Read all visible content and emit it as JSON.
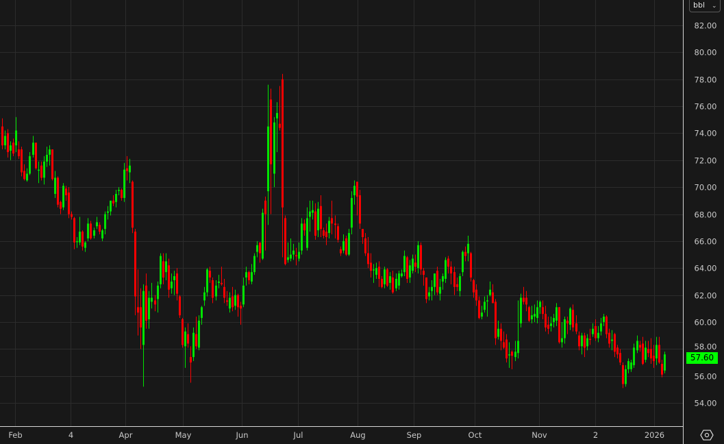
{
  "unit_selector": {
    "value": "bbl",
    "icon": "chevron-down-icon"
  },
  "last_price_label": "57.60",
  "settings_icon": "settings-hexagon-icon",
  "colors": {
    "background": "#181818",
    "grid": "#2c2c2c",
    "up": "#00e400",
    "down": "#ff0000",
    "last_price_bg": "#00ff00",
    "axis_line": "#d8d8d8"
  },
  "chart_data": {
    "type": "candlestick",
    "title": "",
    "xlabel": "",
    "ylabel": "",
    "ylim": [
      52.6,
      83.9
    ],
    "grid": true,
    "y_ticks": [
      "54.00",
      "56.00",
      "58.00",
      "60.00",
      "62.00",
      "64.00",
      "66.00",
      "68.00",
      "70.00",
      "72.00",
      "74.00",
      "76.00",
      "78.00",
      "80.00",
      "82.00"
    ],
    "x_tick_labels": [
      "Feb",
      "4",
      "Apr",
      "May",
      "Jun",
      "Jul",
      "Aug",
      "Sep",
      "Oct",
      "Nov",
      "2",
      "2026"
    ],
    "last_close": 57.6,
    "ohlc_fields": [
      "open",
      "high",
      "low",
      "close"
    ],
    "candles": [
      [
        74.5,
        75.1,
        72.8,
        73.1
      ],
      [
        73.1,
        74.2,
        72.8,
        73.8
      ],
      [
        74.0,
        74.3,
        72.2,
        72.6
      ],
      [
        72.7,
        73.4,
        72.0,
        73.1
      ],
      [
        73.3,
        73.6,
        72.3,
        72.5
      ],
      [
        73.1,
        75.2,
        72.6,
        74.2
      ],
      [
        72.8,
        73.4,
        72.1,
        72.3
      ],
      [
        72.8,
        73.0,
        70.8,
        71.1
      ],
      [
        71.2,
        71.7,
        70.5,
        70.6
      ],
      [
        70.5,
        71.4,
        70.4,
        71.0
      ],
      [
        71.0,
        72.6,
        70.9,
        72.3
      ],
      [
        72.4,
        73.8,
        72.2,
        73.3
      ],
      [
        73.3,
        73.3,
        71.3,
        71.4
      ],
      [
        71.3,
        71.9,
        70.3,
        71.3
      ],
      [
        71.6,
        71.9,
        70.5,
        70.7
      ],
      [
        70.7,
        72.3,
        70.2,
        71.9
      ],
      [
        71.9,
        73.0,
        71.5,
        72.4
      ],
      [
        72.4,
        73.1,
        71.6,
        72.8
      ],
      [
        72.8,
        72.8,
        70.5,
        70.6
      ],
      [
        69.5,
        71.2,
        69.2,
        70.7
      ],
      [
        70.7,
        70.8,
        68.5,
        68.7
      ],
      [
        68.9,
        69.0,
        68.0,
        68.4
      ],
      [
        68.5,
        70.3,
        68.3,
        70.1
      ],
      [
        69.9,
        70.1,
        69.0,
        69.4
      ],
      [
        69.6,
        70.0,
        67.7,
        68.0
      ],
      [
        68.0,
        68.2,
        67.6,
        67.8
      ],
      [
        67.7,
        67.8,
        65.4,
        65.9
      ],
      [
        65.95,
        66.3,
        65.5,
        66.0
      ],
      [
        65.9,
        67.8,
        65.7,
        66.7
      ],
      [
        66.7,
        66.8,
        65.3,
        65.6
      ],
      [
        65.5,
        66.0,
        65.2,
        65.9
      ],
      [
        66.2,
        67.7,
        66.0,
        67.3
      ],
      [
        67.3,
        67.5,
        66.1,
        66.2
      ],
      [
        66.4,
        67.0,
        66.2,
        66.8
      ],
      [
        67.1,
        67.8,
        66.9,
        67.4
      ],
      [
        67.2,
        67.4,
        66.5,
        66.7
      ],
      [
        66.2,
        66.9,
        66.0,
        66.8
      ],
      [
        66.9,
        68.2,
        66.5,
        68.0
      ],
      [
        68.1,
        68.6,
        67.6,
        68.2
      ],
      [
        68.2,
        69.0,
        67.9,
        69.0
      ],
      [
        69.0,
        69.4,
        68.6,
        68.8
      ],
      [
        68.9,
        69.8,
        68.5,
        69.5
      ],
      [
        69.75,
        70.0,
        69.4,
        69.8
      ],
      [
        69.8,
        69.9,
        69.0,
        69.2
      ],
      [
        69.2,
        71.8,
        68.9,
        71.3
      ],
      [
        71.4,
        72.3,
        70.5,
        71.2
      ],
      [
        71.1,
        72.1,
        70.3,
        71.6
      ],
      [
        70.4,
        70.5,
        66.6,
        67.0
      ],
      [
        66.7,
        66.9,
        60.5,
        61.9
      ],
      [
        61.1,
        63.9,
        59.0,
        60.7
      ],
      [
        61.1,
        62.5,
        58.0,
        59.6
      ],
      [
        58.3,
        62.8,
        55.2,
        62.3
      ],
      [
        62.7,
        63.6,
        59.5,
        60.1
      ],
      [
        60.2,
        62.3,
        59.5,
        61.8
      ],
      [
        61.5,
        62.9,
        61.0,
        61.8
      ],
      [
        61.6,
        62.0,
        60.8,
        61.3
      ],
      [
        61.7,
        63.0,
        60.7,
        62.7
      ],
      [
        62.8,
        65.1,
        62.5,
        64.9
      ],
      [
        64.5,
        65.1,
        62.8,
        63.3
      ],
      [
        63.7,
        65.1,
        63.1,
        64.5
      ],
      [
        64.2,
        64.7,
        61.8,
        62.4
      ],
      [
        62.5,
        63.6,
        62.1,
        63.0
      ],
      [
        63.1,
        63.8,
        62.0,
        63.4
      ],
      [
        63.6,
        64.0,
        61.6,
        62.1
      ],
      [
        61.9,
        62.0,
        60.3,
        60.5
      ],
      [
        60.2,
        60.3,
        58.1,
        58.3
      ],
      [
        58.2,
        59.6,
        56.6,
        59.3
      ],
      [
        59.1,
        59.9,
        58.1,
        58.4
      ],
      [
        57.4,
        58.2,
        55.5,
        57.0
      ],
      [
        57.4,
        59.6,
        57.1,
        59.2
      ],
      [
        59.1,
        60.4,
        58.0,
        58.2
      ],
      [
        58.1,
        60.5,
        57.9,
        60.1
      ],
      [
        60.3,
        61.2,
        59.8,
        61.1
      ],
      [
        61.6,
        62.6,
        61.2,
        62.2
      ],
      [
        62.2,
        64.0,
        61.9,
        63.9
      ],
      [
        63.8,
        64.1,
        62.9,
        63.3
      ],
      [
        63.1,
        63.3,
        61.4,
        61.8
      ],
      [
        61.9,
        63.1,
        61.6,
        62.7
      ],
      [
        62.9,
        63.5,
        62.5,
        63.0
      ],
      [
        62.9,
        64.1,
        62.7,
        62.8
      ],
      [
        62.6,
        63.2,
        61.4,
        61.8
      ],
      [
        61.6,
        62.3,
        61.2,
        61.5
      ],
      [
        61.0,
        62.2,
        60.7,
        61.8
      ],
      [
        61.9,
        62.6,
        60.8,
        61.1
      ],
      [
        61.2,
        62.4,
        60.9,
        62.0
      ],
      [
        62.0,
        62.1,
        60.4,
        61.1
      ],
      [
        61.2,
        61.5,
        59.8,
        61.0
      ],
      [
        61.3,
        63.3,
        61.1,
        62.7
      ],
      [
        63.3,
        64.1,
        62.7,
        63.7
      ],
      [
        63.7,
        63.8,
        62.8,
        63.1
      ],
      [
        63.0,
        64.3,
        62.8,
        63.7
      ],
      [
        63.7,
        65.1,
        63.5,
        64.9
      ],
      [
        65.2,
        66.0,
        64.8,
        65.7
      ],
      [
        65.9,
        65.9,
        64.4,
        65.1
      ],
      [
        64.7,
        68.4,
        64.6,
        68.1
      ],
      [
        69.0,
        69.3,
        65.3,
        68.0
      ],
      [
        69.7,
        77.6,
        67.2,
        74.5
      ],
      [
        76.5,
        77.3,
        68.0,
        71.7
      ],
      [
        71.0,
        75.2,
        70.0,
        74.8
      ],
      [
        75.1,
        76.3,
        72.6,
        75.5
      ],
      [
        74.7,
        77.5,
        74.2,
        74.4
      ],
      [
        78.0,
        78.4,
        64.8,
        68.5
      ],
      [
        67.7,
        67.9,
        64.2,
        64.3
      ],
      [
        64.6,
        65.9,
        64.4,
        64.8
      ],
      [
        64.7,
        66.2,
        64.5,
        65.0
      ],
      [
        65.0,
        65.8,
        64.6,
        65.3
      ],
      [
        64.95,
        65.5,
        64.2,
        64.9
      ],
      [
        64.7,
        65.9,
        64.5,
        65.2
      ],
      [
        65.3,
        67.7,
        65.0,
        67.3
      ],
      [
        67.3,
        67.6,
        66.4,
        66.8
      ],
      [
        65.5,
        68.5,
        65.3,
        67.7
      ],
      [
        67.8,
        69.0,
        66.7,
        68.2
      ],
      [
        68.1,
        69.0,
        67.6,
        68.3
      ],
      [
        68.2,
        68.8,
        66.1,
        66.4
      ],
      [
        66.8,
        68.9,
        66.3,
        68.4
      ],
      [
        68.6,
        69.4,
        66.3,
        66.9
      ],
      [
        66.8,
        67.0,
        66.2,
        66.4
      ],
      [
        66.7,
        67.3,
        65.7,
        66.3
      ],
      [
        66.6,
        67.8,
        66.2,
        67.5
      ],
      [
        67.7,
        69.0,
        66.5,
        67.3
      ],
      [
        67.3,
        67.9,
        66.2,
        67.2
      ],
      [
        67.1,
        67.3,
        65.9,
        66.1
      ],
      [
        65.4,
        65.6,
        64.9,
        65.1
      ],
      [
        65.3,
        66.5,
        65.1,
        66.0
      ],
      [
        66.2,
        66.4,
        64.9,
        65.0
      ],
      [
        65.0,
        66.9,
        64.9,
        66.6
      ],
      [
        67.0,
        69.7,
        66.5,
        69.2
      ],
      [
        69.4,
        70.5,
        68.7,
        70.1
      ],
      [
        70.4,
        70.4,
        67.9,
        69.3
      ],
      [
        69.4,
        69.8,
        66.9,
        67.3
      ],
      [
        66.9,
        66.9,
        65.8,
        66.3
      ],
      [
        66.2,
        66.6,
        64.9,
        65.1
      ],
      [
        65.1,
        66.3,
        64.0,
        64.3
      ],
      [
        64.4,
        65.1,
        63.3,
        63.8
      ],
      [
        63.85,
        64.3,
        62.9,
        63.9
      ],
      [
        63.5,
        64.4,
        63.2,
        64.0
      ],
      [
        64.1,
        64.5,
        62.6,
        63.2
      ],
      [
        63.2,
        63.4,
        62.5,
        62.6
      ],
      [
        62.8,
        64.1,
        62.5,
        63.9
      ],
      [
        63.9,
        64.0,
        62.6,
        62.7
      ],
      [
        62.9,
        63.7,
        62.4,
        63.4
      ],
      [
        63.3,
        63.8,
        62.1,
        62.2
      ],
      [
        62.5,
        63.6,
        62.3,
        63.2
      ],
      [
        62.7,
        63.8,
        62.4,
        63.6
      ],
      [
        63.4,
        63.9,
        63.3,
        63.6
      ],
      [
        63.7,
        65.3,
        63.4,
        64.9
      ],
      [
        64.8,
        64.9,
        62.9,
        63.2
      ],
      [
        63.3,
        64.6,
        62.9,
        64.2
      ],
      [
        63.8,
        65.0,
        63.6,
        64.7
      ],
      [
        64.4,
        65.0,
        63.7,
        64.1
      ],
      [
        64.0,
        66.0,
        63.6,
        65.7
      ],
      [
        65.7,
        65.9,
        63.5,
        63.9
      ],
      [
        63.8,
        64.0,
        62.7,
        63.5
      ],
      [
        63.3,
        63.3,
        61.4,
        61.7
      ],
      [
        61.9,
        62.6,
        61.6,
        62.2
      ],
      [
        62.3,
        63.1,
        61.6,
        62.6
      ],
      [
        62.6,
        63.6,
        62.0,
        63.6
      ],
      [
        63.8,
        64.1,
        62.0,
        62.2
      ],
      [
        62.1,
        63.2,
        61.6,
        62.6
      ],
      [
        63.0,
        63.6,
        62.4,
        63.4
      ],
      [
        63.2,
        64.8,
        62.9,
        64.6
      ],
      [
        64.7,
        64.9,
        63.6,
        64.1
      ],
      [
        64.1,
        64.5,
        62.8,
        63.6
      ],
      [
        63.7,
        64.1,
        62.0,
        62.6
      ],
      [
        62.8,
        63.3,
        62.3,
        62.6
      ],
      [
        62.3,
        63.6,
        61.9,
        63.4
      ],
      [
        63.7,
        65.3,
        63.4,
        65.2
      ],
      [
        65.2,
        65.6,
        64.5,
        64.9
      ],
      [
        65.1,
        66.4,
        64.5,
        65.8
      ],
      [
        65.1,
        65.2,
        63.0,
        63.3
      ],
      [
        63.1,
        63.2,
        61.8,
        62.2
      ],
      [
        62.4,
        62.8,
        61.2,
        61.6
      ],
      [
        61.6,
        61.9,
        60.2,
        60.3
      ],
      [
        60.4,
        61.2,
        60.2,
        60.7
      ],
      [
        60.9,
        61.9,
        60.7,
        61.5
      ],
      [
        61.55,
        62.0,
        60.4,
        61.6
      ],
      [
        62.0,
        63.0,
        61.9,
        62.4
      ],
      [
        62.2,
        62.8,
        61.4,
        61.4
      ],
      [
        61.5,
        61.7,
        58.3,
        58.8
      ],
      [
        58.9,
        60.1,
        58.7,
        59.5
      ],
      [
        59.5,
        59.9,
        57.9,
        58.6
      ],
      [
        58.5,
        59.3,
        58.0,
        58.1
      ],
      [
        58.7,
        59.1,
        57.0,
        57.3
      ],
      [
        57.55,
        58.5,
        56.6,
        57.6
      ],
      [
        57.8,
        57.9,
        56.5,
        57.5
      ],
      [
        57.4,
        58.6,
        57.1,
        57.8
      ],
      [
        57.7,
        61.6,
        57.3,
        58.6
      ],
      [
        59.9,
        62.1,
        59.6,
        61.8
      ],
      [
        61.8,
        62.6,
        61.3,
        61.5
      ],
      [
        61.8,
        62.3,
        60.8,
        61.3
      ],
      [
        61.1,
        61.2,
        60.0,
        60.1
      ],
      [
        60.2,
        61.2,
        59.9,
        60.5
      ],
      [
        60.4,
        61.3,
        60.0,
        60.6
      ],
      [
        60.3,
        61.6,
        59.9,
        61.1
      ],
      [
        61.1,
        61.6,
        60.6,
        61.5
      ],
      [
        61.1,
        61.6,
        60.2,
        60.6
      ],
      [
        60.6,
        61.2,
        59.3,
        59.6
      ],
      [
        59.8,
        60.4,
        59.1,
        59.5
      ],
      [
        59.7,
        60.4,
        59.3,
        59.9
      ],
      [
        60.0,
        60.6,
        59.6,
        60.3
      ],
      [
        60.1,
        61.4,
        59.7,
        61.1
      ],
      [
        61.1,
        61.1,
        58.4,
        58.5
      ],
      [
        58.5,
        60.0,
        58.1,
        58.8
      ],
      [
        58.8,
        60.4,
        58.4,
        60.2
      ],
      [
        60.1,
        60.4,
        59.1,
        59.9
      ],
      [
        59.8,
        61.1,
        59.4,
        61.0
      ],
      [
        60.9,
        61.3,
        59.3,
        59.6
      ],
      [
        59.9,
        60.5,
        59.1,
        59.3
      ],
      [
        59.0,
        59.3,
        57.9,
        58.2
      ],
      [
        58.2,
        59.2,
        57.6,
        59.0
      ],
      [
        59.0,
        59.2,
        57.4,
        58.1
      ],
      [
        58.2,
        59.1,
        57.9,
        58.8
      ],
      [
        58.75,
        59.5,
        58.3,
        58.7
      ],
      [
        59.1,
        59.9,
        58.9,
        59.5
      ],
      [
        59.7,
        60.2,
        58.6,
        58.8
      ],
      [
        58.8,
        59.7,
        58.5,
        59.2
      ],
      [
        59.3,
        60.3,
        59.0,
        59.9
      ],
      [
        60.0,
        60.6,
        59.7,
        60.4
      ],
      [
        60.4,
        60.5,
        58.8,
        59.1
      ],
      [
        59.2,
        59.5,
        58.1,
        58.4
      ],
      [
        58.6,
        59.4,
        57.9,
        58.7
      ],
      [
        59.1,
        59.2,
        57.4,
        57.8
      ],
      [
        58.1,
        58.3,
        57.3,
        57.6
      ],
      [
        57.7,
        58.0,
        56.8,
        57.0
      ],
      [
        56.8,
        57.0,
        55.1,
        55.4
      ],
      [
        55.4,
        56.8,
        55.2,
        56.5
      ],
      [
        56.5,
        57.3,
        56.2,
        57.1
      ],
      [
        56.5,
        57.2,
        56.3,
        57.0
      ],
      [
        56.8,
        58.4,
        56.6,
        58.1
      ],
      [
        57.9,
        59.0,
        57.7,
        58.6
      ],
      [
        58.3,
        58.6,
        57.8,
        58.1
      ],
      [
        58.4,
        58.9,
        56.8,
        56.9
      ],
      [
        57.2,
        58.6,
        57.0,
        58.1
      ],
      [
        58.0,
        58.6,
        57.4,
        57.7
      ],
      [
        58.0,
        58.8,
        56.9,
        57.3
      ],
      [
        57.5,
        58.3,
        56.6,
        57.1
      ],
      [
        57.3,
        58.9,
        56.8,
        58.3
      ],
      [
        58.3,
        58.9,
        56.9,
        57.0
      ],
      [
        56.9,
        57.2,
        55.9,
        56.1
      ],
      [
        56.4,
        57.8,
        56.2,
        57.6
      ]
    ]
  }
}
